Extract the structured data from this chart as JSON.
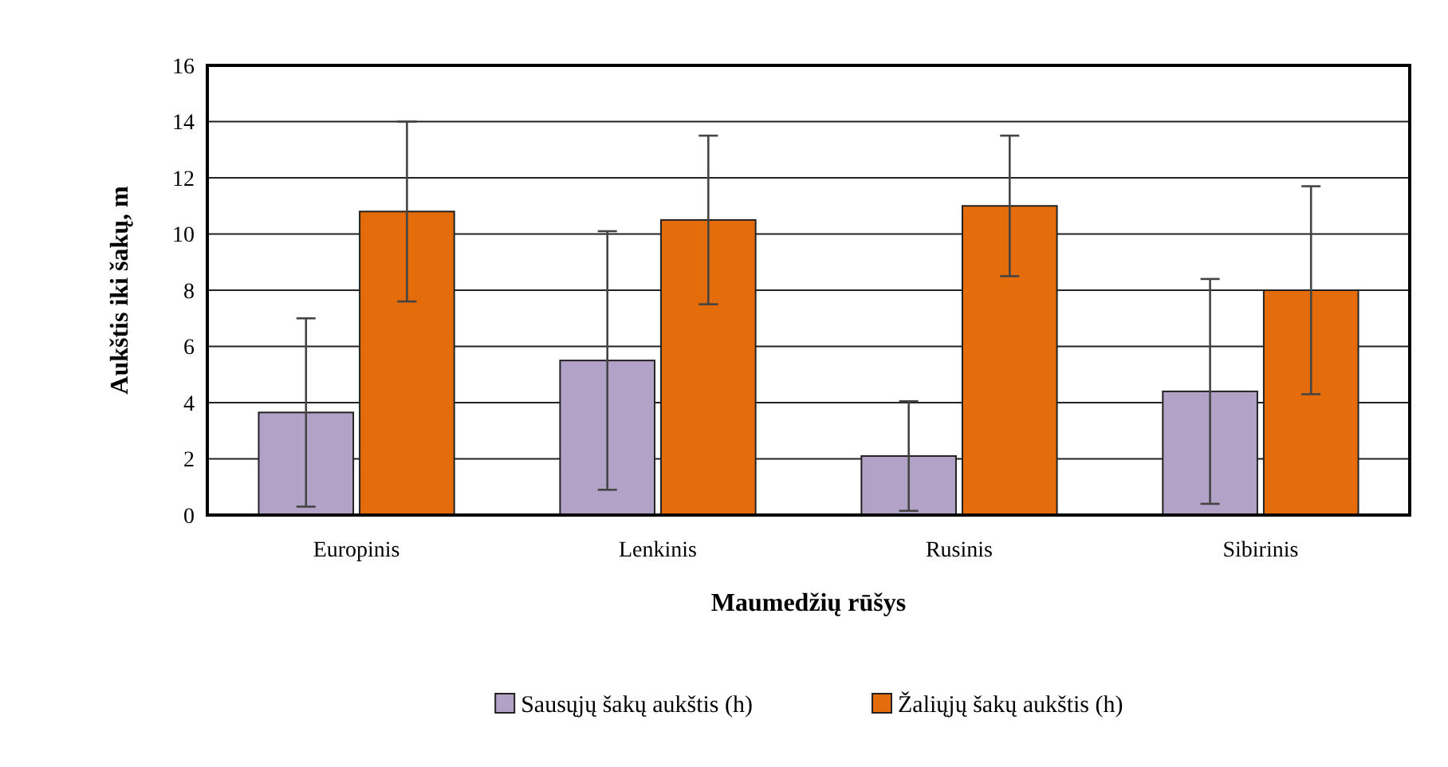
{
  "chart_data": {
    "type": "bar",
    "xlabel": "Maumedžių rūšys",
    "ylabel": "Aukštis iki šakų, m",
    "categories": [
      "Europinis",
      "Lenkinis",
      "Rusinis",
      "Sibirinis"
    ],
    "series": [
      {
        "name": "Sausųjų šakų aukštis (h)",
        "color": "#b3a2c7",
        "values": [
          3.65,
          5.5,
          2.1,
          4.4
        ],
        "errors": [
          3.35,
          4.6,
          1.95,
          4.0
        ]
      },
      {
        "name": "Žaliųjų šakų aukštis (h)",
        "color": "#e46c0a",
        "values": [
          10.8,
          10.5,
          11.0,
          8.0
        ],
        "errors": [
          3.2,
          3.0,
          2.5,
          3.7
        ]
      }
    ],
    "ylim": [
      0,
      16
    ],
    "yticks": [
      0,
      2,
      4,
      6,
      8,
      10,
      12,
      14,
      16
    ],
    "grid": "y",
    "legend": "bottom"
  }
}
